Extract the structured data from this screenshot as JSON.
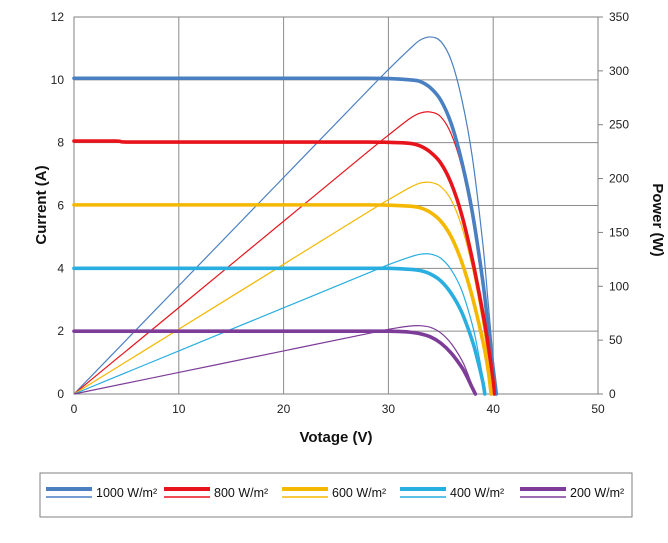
{
  "chart_data": {
    "type": "line",
    "xlabel": "Votage (V)",
    "ylabel_left": "Current (A)",
    "ylabel_right": "Power (W)",
    "xlim": [
      0,
      50
    ],
    "ylim_left": [
      0,
      12
    ],
    "ylim_right": [
      0,
      350
    ],
    "x_ticks": [
      0,
      10,
      20,
      30,
      40,
      50
    ],
    "y_left_ticks": [
      0,
      2,
      4,
      6,
      8,
      10,
      12
    ],
    "y_right_ticks": [
      0,
      50,
      100,
      150,
      200,
      250,
      300,
      350
    ],
    "grid": true,
    "legend_position": "bottom",
    "series": [
      {
        "name": "1000 W/m²",
        "color": "#4a7fc1",
        "current": {
          "x": [
            0,
            10,
            20,
            28,
            30,
            32,
            33,
            34,
            35,
            36,
            37,
            38,
            39,
            39.5,
            40,
            40.3
          ],
          "y": [
            10.05,
            10.05,
            10.05,
            10.05,
            10.04,
            10.0,
            9.95,
            9.75,
            9.35,
            8.6,
            7.4,
            5.8,
            3.6,
            2.2,
            0.8,
            0
          ]
        },
        "power": {
          "x": [
            0,
            10,
            20,
            28,
            30,
            32,
            33,
            34,
            35,
            36,
            37,
            38,
            39,
            39.5,
            40,
            40.3
          ],
          "y": [
            0,
            100.5,
            201,
            281.4,
            301.2,
            320,
            328.4,
            331.5,
            327.3,
            309.6,
            273.8,
            220.4,
            140.4,
            86.9,
            32,
            0
          ]
        }
      },
      {
        "name": "800 W/m²",
        "color": "#e8141c",
        "current": {
          "x": [
            0,
            4,
            5,
            10,
            20,
            28,
            30,
            32,
            33,
            34,
            35,
            36,
            37,
            38,
            39,
            39.5,
            40,
            40.1
          ],
          "y": [
            8.05,
            8.05,
            8.02,
            8.02,
            8.02,
            8.02,
            8.01,
            7.98,
            7.9,
            7.7,
            7.35,
            6.7,
            5.7,
            4.3,
            2.6,
            1.6,
            0.4,
            0
          ]
        },
        "power": {
          "x": [
            0,
            4,
            5,
            10,
            20,
            28,
            30,
            32,
            33,
            34,
            35,
            36,
            37,
            38,
            39,
            39.5,
            40,
            40.1
          ],
          "y": [
            0,
            32.2,
            40.1,
            80.2,
            160.4,
            224.6,
            240.3,
            255.4,
            260.7,
            261.8,
            257.3,
            241.2,
            210.9,
            163.4,
            101.4,
            63.2,
            16,
            0
          ]
        }
      },
      {
        "name": "600 W/m²",
        "color": "#f5b800",
        "current": {
          "x": [
            0,
            10,
            20,
            28,
            30,
            32,
            33,
            34,
            35,
            36,
            37,
            38,
            39,
            39.5,
            39.8
          ],
          "y": [
            6.02,
            6.02,
            6.02,
            6.02,
            6.01,
            5.98,
            5.93,
            5.78,
            5.5,
            5.0,
            4.2,
            3.1,
            1.7,
            0.8,
            0
          ]
        },
        "power": {
          "x": [
            0,
            10,
            20,
            28,
            30,
            32,
            33,
            34,
            35,
            36,
            37,
            38,
            39,
            39.5,
            39.8
          ],
          "y": [
            0,
            60.2,
            120.4,
            168.6,
            180.3,
            191.4,
            195.7,
            196.5,
            192.5,
            180,
            155.4,
            117.8,
            66.3,
            31.6,
            0
          ]
        }
      },
      {
        "name": "400 W/m²",
        "color": "#29aee0",
        "current": {
          "x": [
            0,
            10,
            20,
            28,
            30,
            32,
            33,
            34,
            35,
            36,
            37,
            38,
            38.5,
            39,
            39.2
          ],
          "y": [
            4.0,
            4.0,
            4.0,
            4.0,
            4.0,
            3.97,
            3.93,
            3.82,
            3.6,
            3.2,
            2.6,
            1.7,
            1.1,
            0.4,
            0
          ]
        },
        "power": {
          "x": [
            0,
            10,
            20,
            28,
            30,
            32,
            33,
            34,
            35,
            36,
            37,
            38,
            38.5,
            39,
            39.2
          ],
          "y": [
            0,
            40,
            80,
            112,
            120,
            127,
            129.7,
            129.9,
            126,
            115.2,
            96.2,
            64.6,
            42.4,
            15.6,
            0
          ]
        }
      },
      {
        "name": "200 W/m²",
        "color": "#7d3c98",
        "current": {
          "x": [
            0,
            10,
            20,
            28,
            30,
            31,
            32,
            33,
            34,
            35,
            36,
            37,
            37.5,
            38,
            38.3
          ],
          "y": [
            2.0,
            2.0,
            2.0,
            2.0,
            2.0,
            1.99,
            1.97,
            1.92,
            1.82,
            1.62,
            1.3,
            0.85,
            0.55,
            0.2,
            0
          ]
        },
        "power": {
          "x": [
            0,
            10,
            20,
            28,
            30,
            31,
            32,
            33,
            34,
            35,
            36,
            37,
            37.5,
            38,
            38.3
          ],
          "y": [
            0,
            20,
            40,
            56,
            60,
            61.7,
            63,
            63.4,
            61.9,
            56.7,
            46.8,
            31.5,
            20.6,
            7.6,
            0
          ]
        }
      }
    ]
  }
}
